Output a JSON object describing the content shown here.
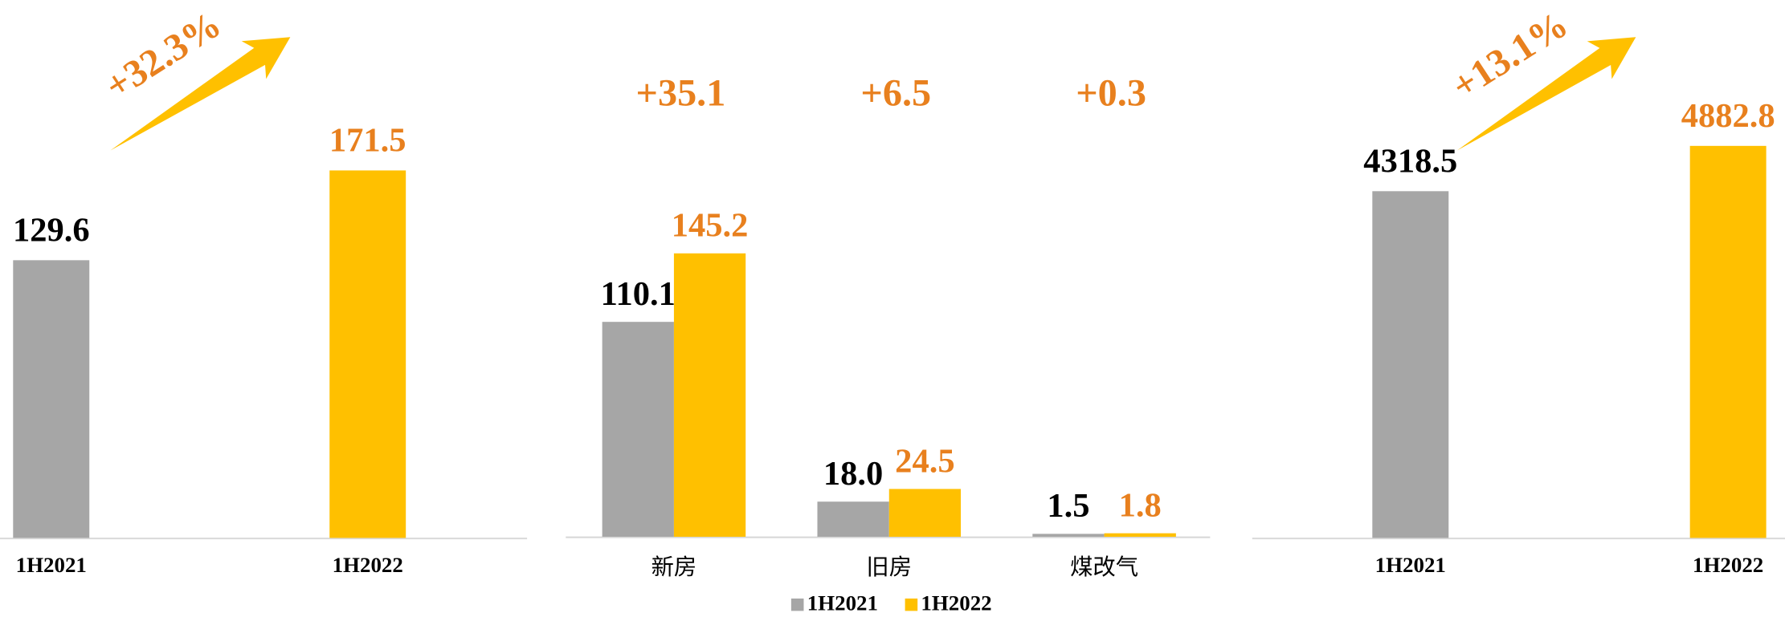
{
  "chart_data": [
    {
      "type": "bar",
      "categories": [
        "1H2021",
        "1H2022"
      ],
      "values": [
        129.6,
        171.5
      ],
      "colors": [
        "#a6a6a6",
        "#ffc000"
      ],
      "annotation": "+32.3%",
      "ylim": [
        0,
        250
      ]
    },
    {
      "type": "bar",
      "categories": [
        "新房",
        "旧房",
        "煤改气"
      ],
      "series": [
        {
          "name": "1H2021",
          "color": "#a6a6a6",
          "values": [
            110.1,
            18.0,
            1.5
          ],
          "value_labels": [
            "110.1",
            "18.0",
            "1.5"
          ]
        },
        {
          "name": "1H2022",
          "color": "#ffc000",
          "values": [
            145.2,
            24.5,
            1.8
          ]
        }
      ],
      "annotations": [
        "+35.1",
        "+6.5",
        "+0.3"
      ],
      "ylim": [
        0,
        275
      ],
      "legend": "bottom"
    },
    {
      "type": "bar",
      "categories": [
        "1H2021",
        "1H2022"
      ],
      "values": [
        4318.5,
        4882.8
      ],
      "colors": [
        "#a6a6a6",
        "#ffc000"
      ],
      "annotation": "+13.1%",
      "ylim": [
        0,
        6700
      ]
    }
  ]
}
